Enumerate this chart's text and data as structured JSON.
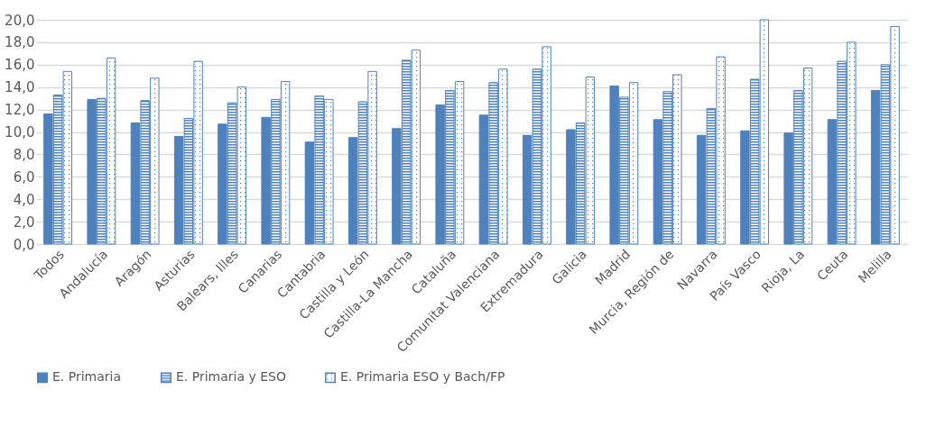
{
  "chart_data": {
    "type": "bar",
    "categories": [
      "Todos",
      "Andalucía",
      "Aragón",
      "Asturias",
      "Balears, Illes",
      "Canarias",
      "Cantabria",
      "Castilla y León",
      "Castilla-La Mancha",
      "Cataluña",
      "Comunitat Valenciana",
      "Extremadura",
      "Galicia",
      "Madrid",
      "Murcia, Región de",
      "Navarra",
      "País Vasco",
      "Rioja, La",
      "Ceuta",
      "Melilla"
    ],
    "series": [
      {
        "name": "E. Primaria",
        "color": "#4f81bd",
        "values": [
          11.6,
          12.9,
          10.8,
          9.6,
          10.7,
          11.3,
          9.1,
          9.5,
          10.3,
          12.4,
          11.5,
          9.7,
          10.2,
          14.1,
          11.1,
          9.7,
          10.1,
          9.9,
          11.1,
          13.7
        ]
      },
      {
        "name": "E. Primaria y ESO",
        "color": "#4f81bd",
        "values": [
          13.3,
          13.0,
          12.8,
          11.2,
          12.6,
          12.9,
          13.2,
          12.7,
          16.4,
          13.7,
          14.4,
          15.6,
          10.8,
          13.1,
          13.6,
          12.1,
          14.7,
          13.7,
          16.3,
          16.0
        ]
      },
      {
        "name": "E. Primaria ESO y Bach/FP",
        "color": "#4f81bd",
        "values": [
          15.4,
          16.6,
          14.8,
          16.3,
          14.0,
          14.5,
          12.9,
          15.4,
          17.3,
          14.5,
          15.6,
          17.6,
          14.9,
          14.4,
          15.1,
          16.7,
          20.0,
          15.7,
          18.0,
          19.4
        ]
      }
    ],
    "ylim": [
      0,
      20
    ],
    "yticks": [
      {
        "value": 0,
        "label": "0,0"
      },
      {
        "value": 2,
        "label": "2,0"
      },
      {
        "value": 4,
        "label": "4,0"
      },
      {
        "value": 6,
        "label": "6,0"
      },
      {
        "value": 8,
        "label": "8,0"
      },
      {
        "value": 10,
        "label": "10,0"
      },
      {
        "value": 12,
        "label": "12,0"
      },
      {
        "value": 14,
        "label": "14,0"
      },
      {
        "value": 16,
        "label": "16,0"
      },
      {
        "value": 18,
        "label": "18,0"
      },
      {
        "value": 20,
        "label": "20,0"
      }
    ],
    "grid": "y",
    "legend": "bottom"
  }
}
